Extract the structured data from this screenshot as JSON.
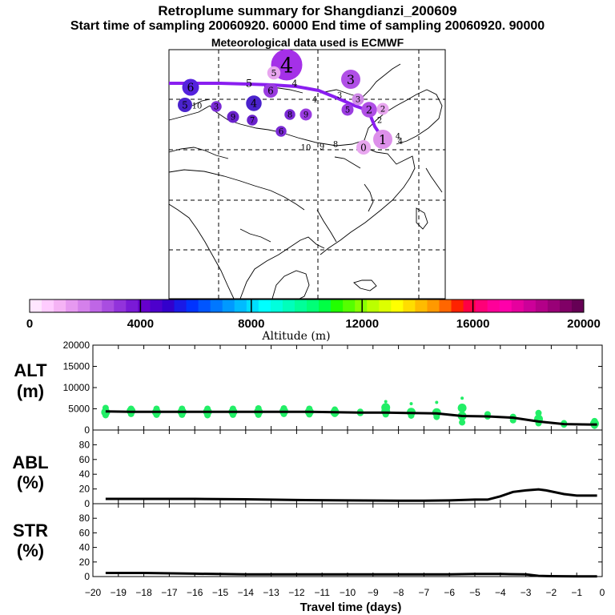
{
  "header": {
    "title": "Retroplume summary for Shangdianzi_200609",
    "sampling_line": "Start time of sampling 20060920. 60000     End time of sampling 20060920. 90000",
    "met_line": "Meteorological data used is ECMWF"
  },
  "colorbar": {
    "title": "Altitude (m)",
    "tick_labels": [
      "0",
      "4000",
      "8000",
      "12000",
      "16000",
      "20000"
    ],
    "colors": [
      "#ffe6ff",
      "#ffccff",
      "#f5b3f5",
      "#e699f0",
      "#d480eb",
      "#bf66e6",
      "#a94de0",
      "#9233db",
      "#7a1ad6",
      "#6600cc",
      "#4d00cc",
      "#3300cc",
      "#1a1ae6",
      "#0033ff",
      "#0055ff",
      "#0077ff",
      "#0099ff",
      "#00bbff",
      "#00ddff",
      "#00ffff",
      "#00ffdd",
      "#00ffbb",
      "#00ff99",
      "#00ff77",
      "#00ff44",
      "#22ff00",
      "#55ff00",
      "#88ff00",
      "#bbff00",
      "#ddff00",
      "#ffff00",
      "#ffdd00",
      "#ffbb00",
      "#ff9900",
      "#ff6600",
      "#ff2200",
      "#ff0044",
      "#ff0077",
      "#ff0099",
      "#ff00aa",
      "#e6009e",
      "#cc0099",
      "#b30088",
      "#990077",
      "#800066",
      "#660055"
    ]
  },
  "map": {
    "markers": [
      {
        "label": "4",
        "color": "#a530e8",
        "size": 2.6
      },
      {
        "label": "5",
        "color": "#e8a6ef",
        "size": 1.1
      },
      {
        "label": "5",
        "color": "#ffffff",
        "size": 1.3
      },
      {
        "label": "4",
        "color": "#ffffff",
        "size": 1.1
      },
      {
        "label": "6",
        "color": "#5522dd",
        "size": 1.4
      },
      {
        "label": "3",
        "color": "#b04fe6",
        "size": 1.6
      },
      {
        "label": "6",
        "color": "#9a3ce0",
        "size": 1.2
      },
      {
        "label": "3",
        "color": "#ffffff",
        "size": 1.0
      },
      {
        "label": "3",
        "color": "#d08ae8",
        "size": 1.0
      },
      {
        "label": "5",
        "color": "#4a22cc",
        "size": 1.2
      },
      {
        "label": "10",
        "color": "#ffffff",
        "size": 0.8
      },
      {
        "label": "4",
        "color": "#4a22cc",
        "size": 1.3
      },
      {
        "label": "2",
        "color": "#b04fe6",
        "size": 1.3
      },
      {
        "label": "2",
        "color": "#e8a6ef",
        "size": 1.0
      },
      {
        "label": "2",
        "color": "#ffffff",
        "size": 0.9
      },
      {
        "label": "1",
        "color": "#dd90ea",
        "size": 1.6
      },
      {
        "label": "0",
        "color": "#e8a6ef",
        "size": 1.2
      },
      {
        "label": "10",
        "color": "#ffffff",
        "size": 0.8
      },
      {
        "label": "9",
        "color": "#ffffff",
        "size": 0.8
      },
      {
        "label": "8",
        "color": "#ffffff",
        "size": 0.8
      },
      {
        "label": "9",
        "color": "#9a3ce0",
        "size": 1.0
      },
      {
        "label": "9",
        "color": "#6a22cc",
        "size": 1.0
      },
      {
        "label": "7",
        "color": "#6a22cc",
        "size": 0.9
      },
      {
        "label": "8",
        "color": "#7a2ad4",
        "size": 0.9
      },
      {
        "label": "6",
        "color": "#7a2ad4",
        "size": 0.9
      },
      {
        "label": "5",
        "color": "#9a3ce0",
        "size": 1.0
      },
      {
        "label": "4",
        "color": "#ffffff",
        "size": 0.8
      },
      {
        "label": "3",
        "color": "#7a2ad4",
        "size": 0.9
      },
      {
        "label": "4",
        "color": "#ffffff",
        "size": 0.8
      },
      {
        "label": "4",
        "color": "#ffffff",
        "size": 0.8
      }
    ]
  },
  "chart_data": [
    {
      "type": "line",
      "title": "ALT (m)",
      "xlabel": "Travel time (days)",
      "x_ticks": [
        "-20",
        "-19",
        "-18",
        "-17",
        "-16",
        "-15",
        "-14",
        "-13",
        "-12",
        "-11",
        "-10",
        "-9",
        "-8",
        "-7",
        "-6",
        "-5",
        "-4",
        "-3",
        "-2",
        "-1",
        "0"
      ],
      "y_ticks": [
        "20000",
        "15000",
        "10000",
        "5000",
        "0"
      ],
      "xlim": [
        -20,
        0
      ],
      "ylim": [
        0,
        20000
      ],
      "series": [
        {
          "name": "median altitude",
          "x": [
            -19.5,
            -18.5,
            -17.5,
            -16.5,
            -15.5,
            -14.5,
            -13.5,
            -12.5,
            -11.5,
            -10.5,
            -9.5,
            -8.5,
            -7.5,
            -6.5,
            -5.5,
            -4.5,
            -3.5,
            -2.5,
            -1.5,
            -0.5,
            -0.2
          ],
          "y": [
            4400,
            4300,
            4300,
            4300,
            4300,
            4300,
            4300,
            4300,
            4300,
            4200,
            4100,
            4100,
            4000,
            3900,
            3300,
            3200,
            2900,
            2000,
            1400,
            1300,
            1300
          ]
        }
      ],
      "clusters": [
        {
          "x": -19.5,
          "y": [
            3500,
            4200,
            5200
          ]
        },
        {
          "x": -18.5,
          "y": [
            3800,
            4500,
            5000
          ]
        },
        {
          "x": -17.5,
          "y": [
            3600,
            4200,
            5000
          ]
        },
        {
          "x": -16.5,
          "y": [
            3600,
            4300,
            5000
          ]
        },
        {
          "x": -15.5,
          "y": [
            3500,
            4300,
            5000
          ]
        },
        {
          "x": -14.5,
          "y": [
            3600,
            4300,
            5000
          ]
        },
        {
          "x": -13.5,
          "y": [
            3600,
            4300,
            5100
          ]
        },
        {
          "x": -12.5,
          "y": [
            3800,
            4400,
            5100
          ]
        },
        {
          "x": -11.5,
          "y": [
            3700,
            4300,
            5000
          ]
        },
        {
          "x": -10.5,
          "y": [
            3800,
            4200,
            4800
          ]
        },
        {
          "x": -9.5,
          "y": [
            4000,
            4300
          ]
        },
        {
          "x": -8.5,
          "y": [
            3700,
            4400,
            5300,
            6700
          ]
        },
        {
          "x": -7.5,
          "y": [
            3400,
            4200,
            6200
          ]
        },
        {
          "x": -6.5,
          "y": [
            3100,
            4100,
            6500
          ]
        },
        {
          "x": -5.5,
          "y": [
            1800,
            3300,
            5200,
            7500
          ]
        },
        {
          "x": -4.5,
          "y": [
            3200,
            3700
          ]
        },
        {
          "x": -3.5,
          "y": [
            2300,
            3100
          ]
        },
        {
          "x": -2.5,
          "y": [
            1600,
            2600,
            4000
          ]
        },
        {
          "x": -1.5,
          "y": [
            1300,
            1600
          ]
        },
        {
          "x": -0.3,
          "y": [
            1000,
            1500,
            2100
          ]
        }
      ]
    },
    {
      "type": "line",
      "title": "ABL (%)",
      "xlim": [
        -20,
        0
      ],
      "ylim": [
        0,
        100
      ],
      "y_ticks": [
        "80",
        "60",
        "40",
        "20",
        "0"
      ],
      "series": [
        {
          "name": "ABL fraction",
          "x": [
            -19.5,
            -18,
            -16,
            -14,
            -12,
            -10,
            -8,
            -7,
            -6,
            -5,
            -4.5,
            -4,
            -3.5,
            -3,
            -2.5,
            -2.2,
            -1.5,
            -1,
            -0.2
          ],
          "y": [
            6.5,
            6.5,
            6.5,
            6,
            5,
            4.5,
            4,
            4,
            4.5,
            5.5,
            5.5,
            10,
            16,
            18,
            19.5,
            18,
            13,
            11,
            11
          ]
        }
      ]
    },
    {
      "type": "line",
      "title": "STR (%)",
      "xlim": [
        -20,
        0
      ],
      "ylim": [
        0,
        100
      ],
      "y_ticks": [
        "80",
        "60",
        "40",
        "20",
        "0"
      ],
      "series": [
        {
          "name": "STR fraction",
          "x": [
            -19.5,
            -18,
            -16,
            -14,
            -12,
            -10,
            -8,
            -6,
            -5,
            -4,
            -3,
            -2.5,
            -2,
            -1,
            -0.2
          ],
          "y": [
            5,
            5,
            4,
            3,
            3,
            3,
            3,
            3,
            3.5,
            3.5,
            3,
            1,
            0.5,
            0.3,
            0.3
          ]
        }
      ]
    }
  ]
}
